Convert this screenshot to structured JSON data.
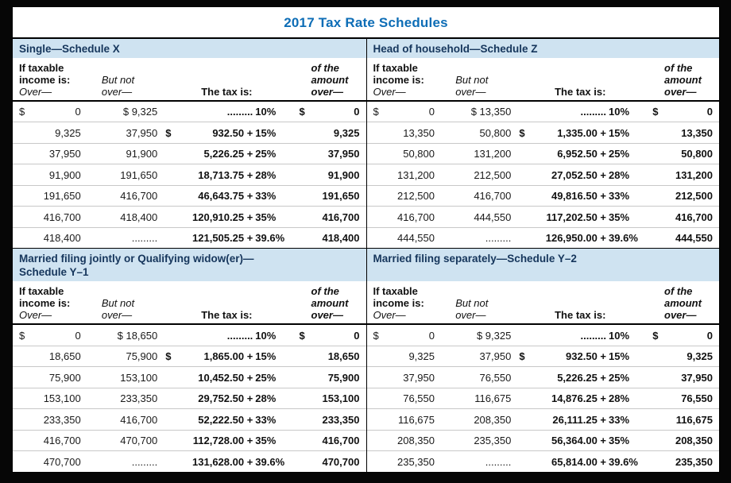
{
  "page": {
    "title": "2017 Tax Rate Schedules"
  },
  "colors": {
    "title_blue": "#0d6db6",
    "bar_bg": "#cfe3f1",
    "bar_text": "#16365c",
    "row_line": "#c8c8c8"
  },
  "column_headers": {
    "c1": [
      "If taxable",
      "income is:",
      "Over—"
    ],
    "c2": [
      "But not",
      "over—"
    ],
    "c3": "The tax is:",
    "c4": [
      "of the",
      "amount",
      "over—"
    ]
  },
  "schedules": [
    {
      "title_lines": [
        "Single—Schedule X"
      ],
      "rows": [
        {
          "ov_d": "$",
          "ov": "0",
          "but": "$  9,325",
          "tax_d": "",
          "tax_a": ".........",
          "tax_p": "10%",
          "am_d": "$",
          "am": "0"
        },
        {
          "ov_d": "",
          "ov": "9,325",
          "but": "37,950",
          "tax_d": "$",
          "tax_a": "932.50 +",
          "tax_p": "15%",
          "am_d": "",
          "am": "9,325"
        },
        {
          "ov_d": "",
          "ov": "37,950",
          "but": "91,900",
          "tax_d": "",
          "tax_a": "5,226.25 +",
          "tax_p": "25%",
          "am_d": "",
          "am": "37,950"
        },
        {
          "ov_d": "",
          "ov": "91,900",
          "but": "191,650",
          "tax_d": "",
          "tax_a": "18,713.75 +",
          "tax_p": "28%",
          "am_d": "",
          "am": "91,900"
        },
        {
          "ov_d": "",
          "ov": "191,650",
          "but": "416,700",
          "tax_d": "",
          "tax_a": "46,643.75 +",
          "tax_p": "33%",
          "am_d": "",
          "am": "191,650"
        },
        {
          "ov_d": "",
          "ov": "416,700",
          "but": "418,400",
          "tax_d": "",
          "tax_a": "120,910.25 +",
          "tax_p": "35%",
          "am_d": "",
          "am": "416,700"
        },
        {
          "ov_d": "",
          "ov": "418,400",
          "but": ".........",
          "tax_d": "",
          "tax_a": "121,505.25 +",
          "tax_p": "39.6%",
          "am_d": "",
          "am": "418,400"
        }
      ]
    },
    {
      "title_lines": [
        "Head of household—Schedule Z"
      ],
      "rows": [
        {
          "ov_d": "$",
          "ov": "0",
          "but": "$  13,350",
          "tax_d": "",
          "tax_a": ".........",
          "tax_p": "10%",
          "am_d": "$",
          "am": "0"
        },
        {
          "ov_d": "",
          "ov": "13,350",
          "but": "50,800",
          "tax_d": "$",
          "tax_a": "1,335.00 +",
          "tax_p": "15%",
          "am_d": "",
          "am": "13,350"
        },
        {
          "ov_d": "",
          "ov": "50,800",
          "but": "131,200",
          "tax_d": "",
          "tax_a": "6,952.50 +",
          "tax_p": "25%",
          "am_d": "",
          "am": "50,800"
        },
        {
          "ov_d": "",
          "ov": "131,200",
          "but": "212,500",
          "tax_d": "",
          "tax_a": "27,052.50 +",
          "tax_p": "28%",
          "am_d": "",
          "am": "131,200"
        },
        {
          "ov_d": "",
          "ov": "212,500",
          "but": "416,700",
          "tax_d": "",
          "tax_a": "49,816.50 +",
          "tax_p": "33%",
          "am_d": "",
          "am": "212,500"
        },
        {
          "ov_d": "",
          "ov": "416,700",
          "but": "444,550",
          "tax_d": "",
          "tax_a": "117,202.50 +",
          "tax_p": "35%",
          "am_d": "",
          "am": "416,700"
        },
        {
          "ov_d": "",
          "ov": "444,550",
          "but": ".........",
          "tax_d": "",
          "tax_a": "126,950.00 +",
          "tax_p": "39.6%",
          "am_d": "",
          "am": "444,550"
        }
      ]
    },
    {
      "title_lines": [
        "Married filing jointly or Qualifying widow(er)—",
        "Schedule Y–1"
      ],
      "rows": [
        {
          "ov_d": "$",
          "ov": "0",
          "but": "$  18,650",
          "tax_d": "",
          "tax_a": ".........",
          "tax_p": "10%",
          "am_d": "$",
          "am": "0"
        },
        {
          "ov_d": "",
          "ov": "18,650",
          "but": "75,900",
          "tax_d": "$",
          "tax_a": "1,865.00 +",
          "tax_p": "15%",
          "am_d": "",
          "am": "18,650"
        },
        {
          "ov_d": "",
          "ov": "75,900",
          "but": "153,100",
          "tax_d": "",
          "tax_a": "10,452.50 +",
          "tax_p": "25%",
          "am_d": "",
          "am": "75,900"
        },
        {
          "ov_d": "",
          "ov": "153,100",
          "but": "233,350",
          "tax_d": "",
          "tax_a": "29,752.50 +",
          "tax_p": "28%",
          "am_d": "",
          "am": "153,100"
        },
        {
          "ov_d": "",
          "ov": "233,350",
          "but": "416,700",
          "tax_d": "",
          "tax_a": "52,222.50 +",
          "tax_p": "33%",
          "am_d": "",
          "am": "233,350"
        },
        {
          "ov_d": "",
          "ov": "416,700",
          "but": "470,700",
          "tax_d": "",
          "tax_a": "112,728.00 +",
          "tax_p": "35%",
          "am_d": "",
          "am": "416,700"
        },
        {
          "ov_d": "",
          "ov": "470,700",
          "but": ".........",
          "tax_d": "",
          "tax_a": "131,628.00 +",
          "tax_p": "39.6%",
          "am_d": "",
          "am": "470,700"
        }
      ]
    },
    {
      "title_lines": [
        "Married filing separately—Schedule Y–2"
      ],
      "rows": [
        {
          "ov_d": "$",
          "ov": "0",
          "but": "$  9,325",
          "tax_d": "",
          "tax_a": ".........",
          "tax_p": "10%",
          "am_d": "$",
          "am": "0"
        },
        {
          "ov_d": "",
          "ov": "9,325",
          "but": "37,950",
          "tax_d": "$",
          "tax_a": "932.50 +",
          "tax_p": "15%",
          "am_d": "",
          "am": "9,325"
        },
        {
          "ov_d": "",
          "ov": "37,950",
          "but": "76,550",
          "tax_d": "",
          "tax_a": "5,226.25 +",
          "tax_p": "25%",
          "am_d": "",
          "am": "37,950"
        },
        {
          "ov_d": "",
          "ov": "76,550",
          "but": "116,675",
          "tax_d": "",
          "tax_a": "14,876.25 +",
          "tax_p": "28%",
          "am_d": "",
          "am": "76,550"
        },
        {
          "ov_d": "",
          "ov": "116,675",
          "but": "208,350",
          "tax_d": "",
          "tax_a": "26,111.25 +",
          "tax_p": "33%",
          "am_d": "",
          "am": "116,675"
        },
        {
          "ov_d": "",
          "ov": "208,350",
          "but": "235,350",
          "tax_d": "",
          "tax_a": "56,364.00 +",
          "tax_p": "35%",
          "am_d": "",
          "am": "208,350"
        },
        {
          "ov_d": "",
          "ov": "235,350",
          "but": ".........",
          "tax_d": "",
          "tax_a": "65,814.00 +",
          "tax_p": "39.6%",
          "am_d": "",
          "am": "235,350"
        }
      ]
    }
  ]
}
